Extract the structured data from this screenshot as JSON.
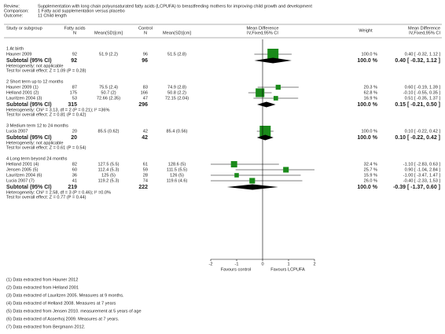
{
  "chart_data": {
    "type": "forest",
    "review_label": "Review:",
    "review": "Supplementation with long chain polyunsaturated fatty acids (LCPUFA) to breastfeeding mothers for improving child growth and development",
    "comparison_label": "Comparison:",
    "comparison": "1 Fatty acid supplementation versus placebo",
    "outcome_label": "Outcome:",
    "outcome": "11 Child length",
    "headers": {
      "study": "Study or subgroup",
      "group1": "Fatty acids",
      "group2": "Control",
      "n": "N",
      "mean": "Mean(SD)[cm]",
      "md": "Mean Difference",
      "method": "IV,Fixed,95% CI",
      "weight": "Weight"
    },
    "color": "#1a8a1a",
    "groups": [
      {
        "title": "1 At birth",
        "studies": [
          {
            "name": "Hauner 2009",
            "n1": 92,
            "mean1": "51.9 (2.2)",
            "n2": 96,
            "mean2": "51.5 (2.8)",
            "weight": 100.0,
            "weight_label": "100.0 %",
            "md": 0.4,
            "ci": [
              -0.32,
              1.12
            ],
            "ci_label": "0.40 [ -0.32, 1.12 ]"
          }
        ],
        "subtotal": {
          "label": "Subtotal (95% CI)",
          "n1": 92,
          "n2": 96,
          "weight": 100.0,
          "weight_label": "100.0 %",
          "md": 0.4,
          "ci": [
            -0.32,
            1.12
          ],
          "ci_label": "0.40 [ -0.32, 1.12 ]"
        },
        "heterogeneity": "Heterogeneity: not applicable",
        "test": "Test for overall effect: Z = 1.09 (P = 0.28)"
      },
      {
        "title": "2 Short term up to 12 months",
        "studies": [
          {
            "name": "Hauner 2009 (1)",
            "n1": 87,
            "mean1": "75.5 (2.4)",
            "n2": 83,
            "mean2": "74.9 (2.8)",
            "weight": 20.3,
            "weight_label": "20.3 %",
            "md": 0.6,
            "ci": [
              -0.19,
              1.39
            ],
            "ci_label": "0.60 [ -0.19, 1.39 ]"
          },
          {
            "name": "Helland 2001 (2)",
            "n1": 175,
            "mean1": "50.7 (2)",
            "n2": 166,
            "mean2": "50.8 (2.2)",
            "weight": 62.8,
            "weight_label": "62.8 %",
            "md": -0.1,
            "ci": [
              -0.55,
              0.35
            ],
            "ci_label": "-0.10 [ -0.55, 0.35 ]"
          },
          {
            "name": "Lauritzen 2004 (3)",
            "n1": 53,
            "mean1": "72.66 (2.35)",
            "n2": 47,
            "mean2": "72.15 (2.04)",
            "weight": 16.9,
            "weight_label": "16.9 %",
            "md": 0.51,
            "ci": [
              -0.35,
              1.37
            ],
            "ci_label": "0.51 [ -0.35, 1.37 ]"
          }
        ],
        "subtotal": {
          "label": "Subtotal (95% CI)",
          "n1": 315,
          "n2": 296,
          "weight": 100.0,
          "weight_label": "100.0 %",
          "md": 0.15,
          "ci": [
            -0.21,
            0.5
          ],
          "ci_label": "0.15 [ -0.21, 0.50 ]"
        },
        "heterogeneity": "Heterogeneity: Chi² = 3.13, df = 2 (P = 0.21); I² =36%",
        "test": "Test for overall effect: Z = 0.81 (P = 0.42)"
      },
      {
        "title": "3 Medium term 12 to 24 months",
        "studies": [
          {
            "name": "Lucia 2007",
            "n1": 20,
            "mean1": "85.5 (0.62)",
            "n2": 42,
            "mean2": "85.4 (0.56)",
            "weight": 100.0,
            "weight_label": "100.0 %",
            "md": 0.1,
            "ci": [
              -0.22,
              0.42
            ],
            "ci_label": "0.10 [ -0.22, 0.42 ]"
          }
        ],
        "subtotal": {
          "label": "Subtotal (95% CI)",
          "n1": 20,
          "n2": 42,
          "weight": 100.0,
          "weight_label": "100.0 %",
          "md": 0.1,
          "ci": [
            -0.22,
            0.42
          ],
          "ci_label": "0.10 [ -0.22, 0.42 ]"
        },
        "heterogeneity": "Heterogeneity: not applicable",
        "test": "Test for overall effect: Z = 0.61 (P = 0.54)"
      },
      {
        "title": "4 Long term beyond 24 months",
        "studies": [
          {
            "name": "Helland 2001 (4)",
            "n1": 82,
            "mean1": "127.5 (5.5)",
            "n2": 61,
            "mean2": "128.6 (5)",
            "weight": 32.4,
            "weight_label": "32.4 %",
            "md": -1.1,
            "ci": [
              -2.83,
              0.63
            ],
            "ci_label": "-1.10 [ -2.83, 0.63 ]"
          },
          {
            "name": "Jensen 2005 (5)",
            "n1": 60,
            "mean1": "112.4 (5.3)",
            "n2": 59,
            "mean2": "111.5 (5.5)",
            "weight": 25.7,
            "weight_label": "25.7 %",
            "md": 0.9,
            "ci": [
              -1.04,
              2.84
            ],
            "ci_label": "0.90 [ -1.04, 2.84 ]"
          },
          {
            "name": "Lauritzen 2004 (6)",
            "n1": 36,
            "mean1": "125 (5)",
            "n2": 28,
            "mean2": "126 (5)",
            "weight": 15.9,
            "weight_label": "15.9 %",
            "md": -1.0,
            "ci": [
              -3.47,
              1.47
            ],
            "ci_label": "-1.00 [ -3.47, 1.47 ]"
          },
          {
            "name": "Lucia 2007 (7)",
            "n1": 41,
            "mean1": "119.2 (5.3)",
            "n2": 74,
            "mean2": "119.6 (4.6)",
            "weight": 26.0,
            "weight_label": "26.0 %",
            "md": -0.4,
            "ci": [
              -2.33,
              1.53
            ],
            "ci_label": "-0.40 [ -2.33, 1.53 ]"
          }
        ],
        "subtotal": {
          "label": "Subtotal (95% CI)",
          "n1": 219,
          "n2": 222,
          "weight": 100.0,
          "weight_label": "100.0 %",
          "md": -0.39,
          "ci": [
            -1.37,
            0.6
          ],
          "ci_label": "-0.39 [ -1.37, 0.60 ]"
        },
        "heterogeneity": "Heterogeneity: Chi² = 2.58, df = 3 (P = 0.46); I² =0.0%",
        "test": "Test for overall effect: Z = 0.77 (P = 0.44)"
      }
    ],
    "xlim": [
      -2,
      2
    ],
    "xticks": [
      -2,
      -1,
      0,
      1,
      2
    ],
    "favours_left": "Favours control",
    "favours_right": "Favours LCPUFA",
    "footnotes": [
      "(1) Data extracted from Hauner 2012",
      "(2) Data extracted from Helland 2001",
      "(3) Data extracted of Lauritzen 2005. Measures at 9 months.",
      "(4) Data extracted of Helland 2008. Measures at 7 years",
      "(5) Data extracted from Jensen 2010. measurement at 5 years of age",
      "(6) Data extracted of Asserhoj 2009. Measures at 7 years.",
      "(7) Data extracted from Bergmann 2012."
    ]
  }
}
